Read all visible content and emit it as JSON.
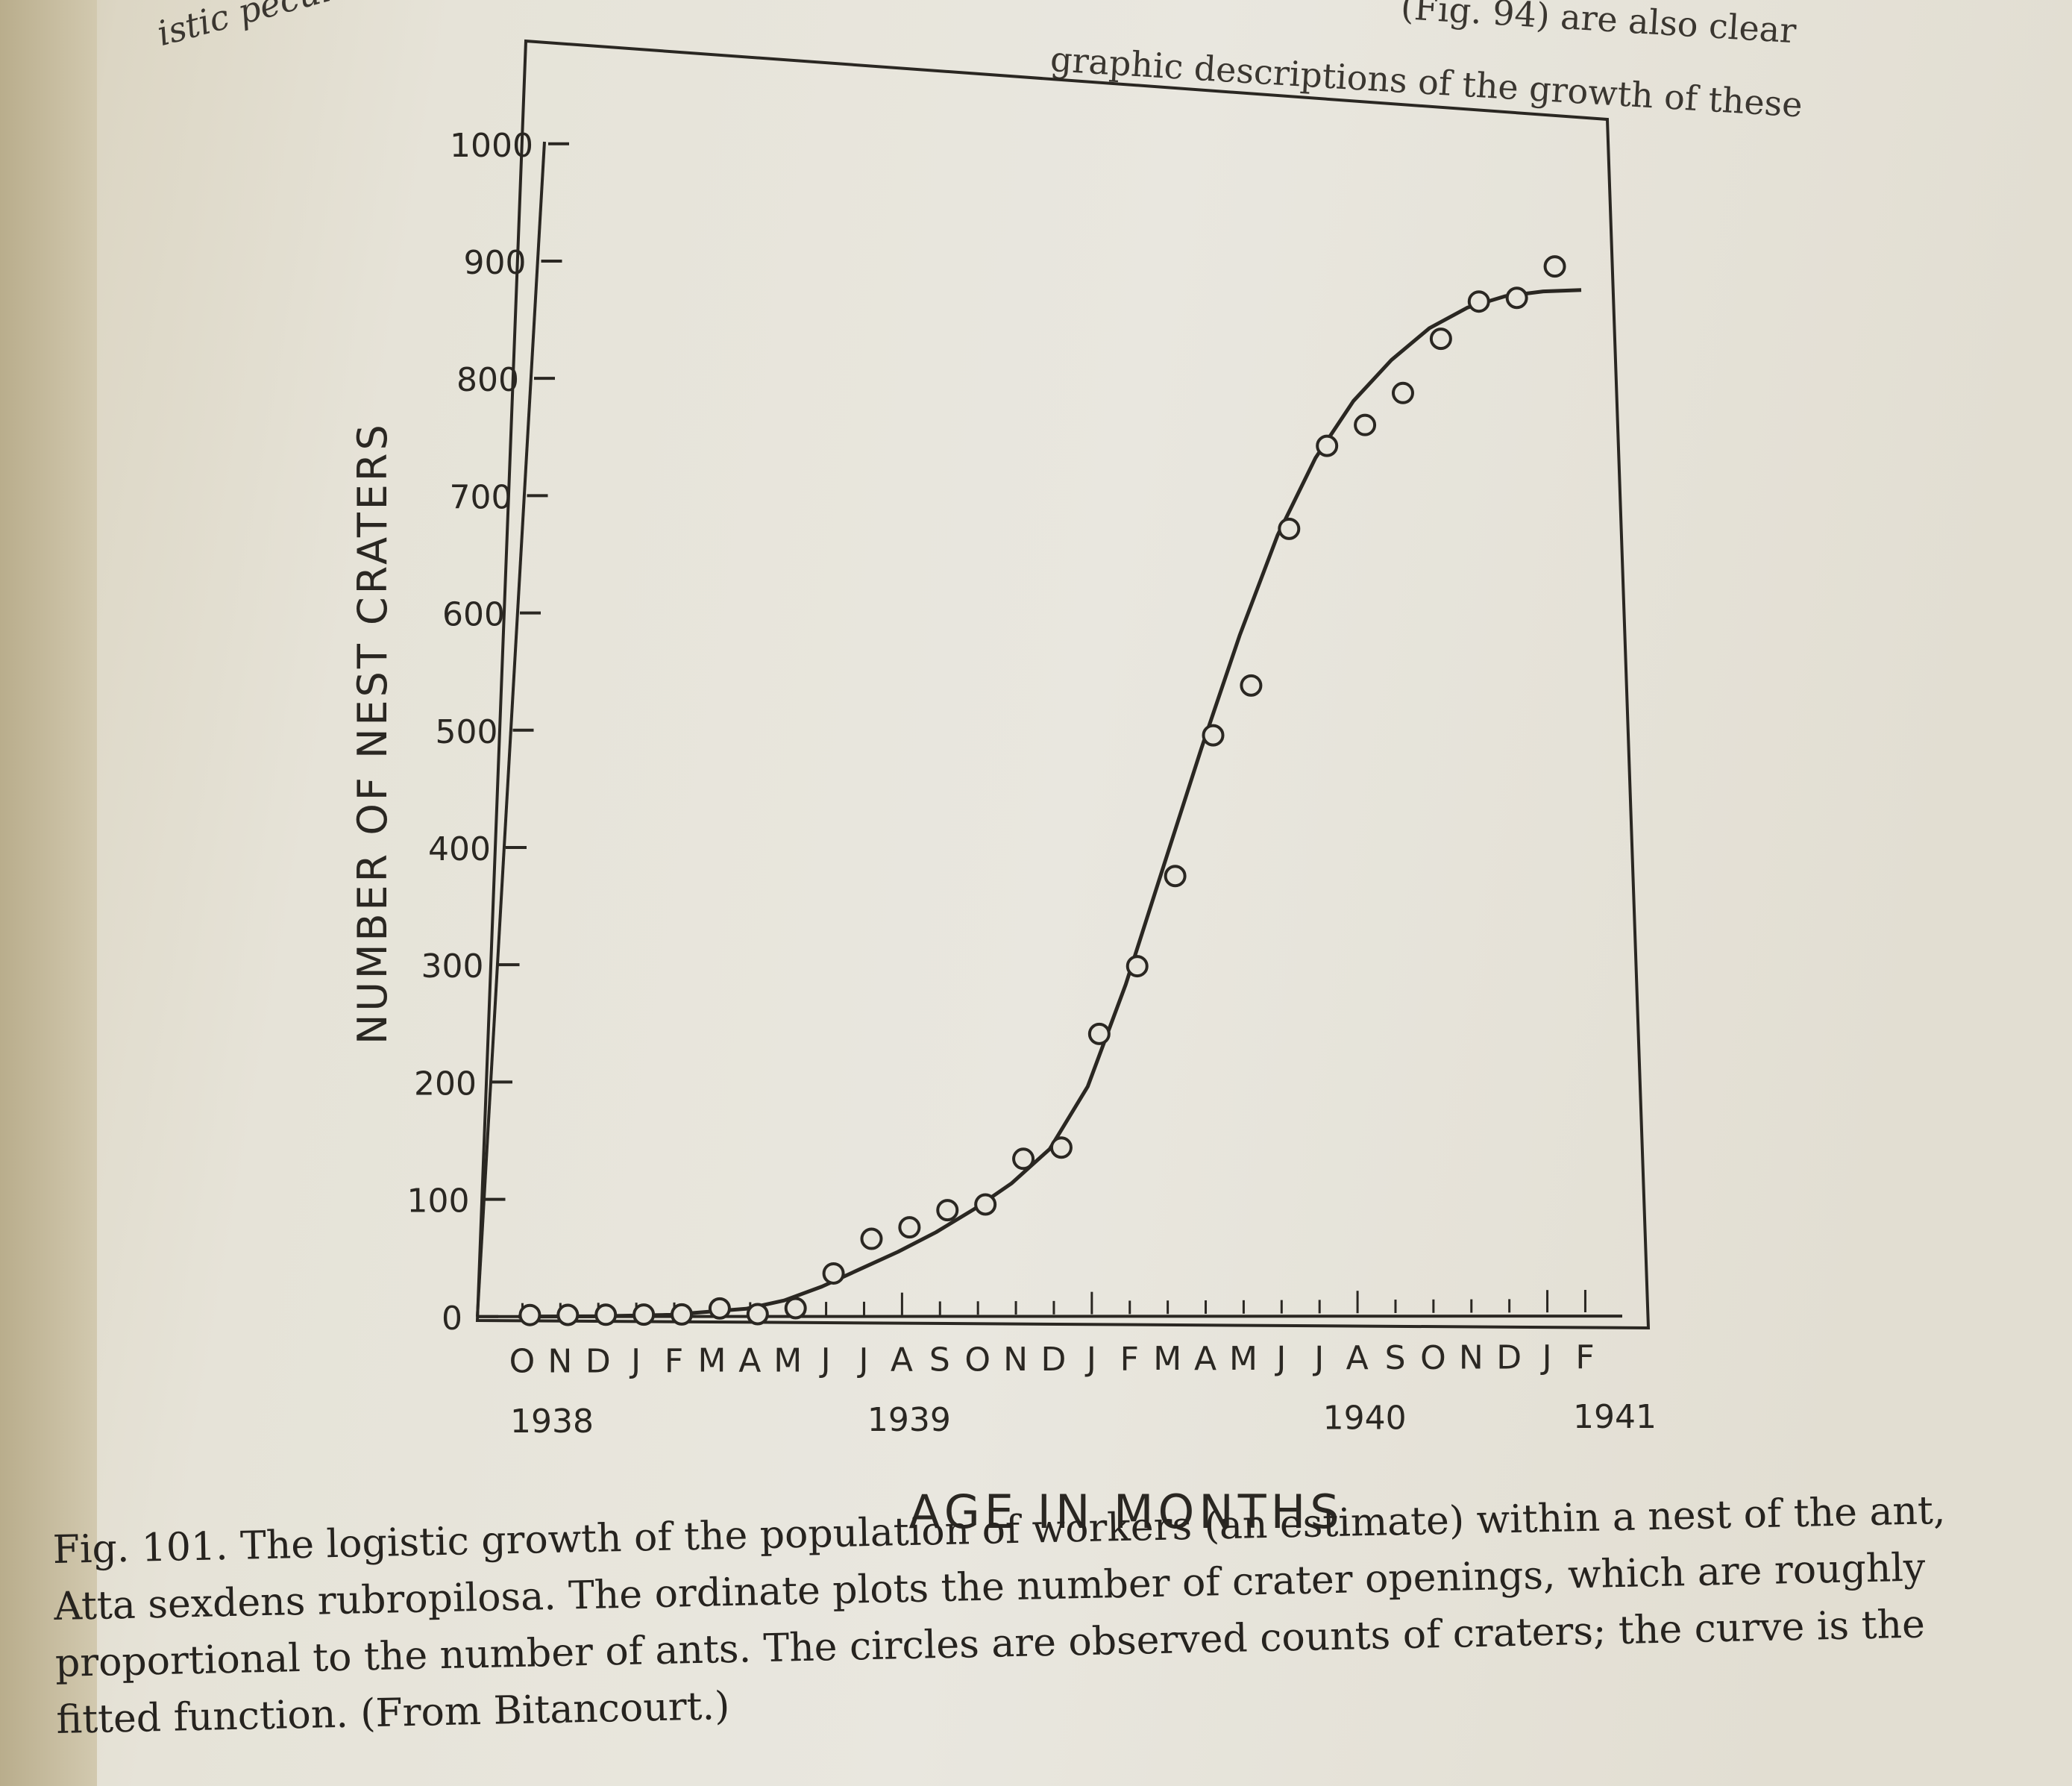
{
  "page": {
    "left_snippet": "istic peculiar",
    "top_snippet_1": "(Fig. 94) are also clear",
    "top_snippet_2": "graphic descriptions of the growth of these",
    "caption": "Fig. 101. The logistic growth of the population of workers (an estimate) within a nest of the ant, Atta sexdens rubropilosa. The ordinate plots the number of crater openings, which are roughly proportional to the number of ants. The circles are observed counts of craters; the curve is the fitted function. (From Bitancourt.)"
  },
  "chart_data": {
    "type": "scatter",
    "title": "",
    "xlabel": "AGE IN MONTHS",
    "ylabel": "NUMBER OF NEST CRATERS",
    "ylim": [
      0,
      1000
    ],
    "yticks": [
      0,
      100,
      200,
      300,
      400,
      500,
      600,
      700,
      800,
      900,
      1000
    ],
    "month_labels": [
      "O",
      "N",
      "D",
      "J",
      "F",
      "M",
      "A",
      "M",
      "J",
      "J",
      "A",
      "S",
      "O",
      "N",
      "D",
      "J",
      "F",
      "M",
      "A",
      "M",
      "J",
      "J",
      "A",
      "S",
      "O",
      "N",
      "D",
      "J",
      "F"
    ],
    "year_labels": [
      {
        "month_index": 0,
        "label": "1938"
      },
      {
        "month_index": 10,
        "label": "1939"
      },
      {
        "month_index": 22,
        "label": "1940"
      },
      {
        "month_index": 28,
        "label": "1941"
      }
    ],
    "grid": false,
    "series": [
      {
        "kind": "observed",
        "x": [
          0.5,
          1.5,
          2.5,
          3.5,
          4.5,
          5.5,
          6.5,
          7.5,
          8.5,
          9.5,
          10.5,
          11.5,
          12.5,
          13.5,
          14.5,
          15.5,
          16.5,
          17.5,
          18.5,
          19.5,
          20.5,
          21.5,
          22.5,
          23.5,
          24.5,
          25.5,
          26.5,
          27.5
        ],
        "y": [
          0,
          0,
          0,
          0,
          0,
          5,
          0,
          5,
          35,
          65,
          75,
          90,
          95,
          135,
          145,
          245,
          305,
          385,
          510,
          555,
          695,
          770,
          790,
          820,
          870,
          905,
          910,
          940
        ]
      },
      {
        "kind": "fitted",
        "x": [
          0,
          2,
          4,
          6,
          7,
          8,
          9,
          10,
          11,
          12,
          13,
          14,
          15,
          16,
          17,
          18,
          19,
          20,
          21,
          22,
          23,
          24,
          25,
          26,
          27,
          28
        ],
        "y": [
          0,
          0,
          1,
          6,
          13,
          25,
          40,
          55,
          72,
          92,
          115,
          145,
          200,
          290,
          395,
          500,
          600,
          690,
          760,
          812,
          850,
          880,
          900,
          912,
          918,
          921
        ]
      }
    ]
  }
}
